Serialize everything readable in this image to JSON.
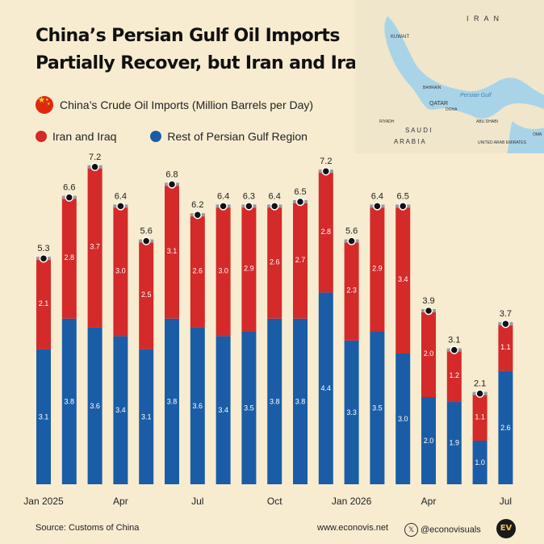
{
  "title_line1": "China’s Persian Gulf Oil Imports",
  "title_line2": "Partially Recover, but Iran and Iraq Lag",
  "subtitle": "China’s Crude Oil Imports (Million Barrels per Day)",
  "source": "Source: Customs of China",
  "website": "www.econovis.net",
  "handle": "@econovisuals",
  "logo_text": "EV",
  "map_labels": {
    "iran": "I R A N",
    "kuwait": "KUWAIT",
    "bahrain": "BAHRAIN",
    "qatar": "QATAR",
    "doha": "DOHA",
    "persian_gulf": "Persian Gulf",
    "riyadh": "RIYADH",
    "saudi": "S A U D I",
    "arabia": "A R A B I A",
    "abu_dhabi": "ABU DHABI",
    "uae": "UNITED ARAB EMIRATES",
    "oman": "OMA"
  },
  "colors": {
    "iran_iraq": "#d42a2a",
    "rest": "#1a5da6",
    "background": "#f7ecd0"
  },
  "chart_data": {
    "type": "bar",
    "stacked": true,
    "categories": [
      "Jan 2025",
      "Feb 2025",
      "Mar 2025",
      "Apr 2025",
      "May 2025",
      "Jun 2025",
      "Jul 2025",
      "Aug 2025",
      "Sep 2025",
      "Oct 2025",
      "Nov 2025",
      "Dec 2025",
      "Jan 2026",
      "Feb 2026",
      "Mar 2026",
      "Apr 2026",
      "May 2026",
      "Jun 2026",
      "Jul 2026"
    ],
    "x_tick_labels": [
      "Jan 2025",
      "",
      "",
      "Apr",
      "",
      "",
      "Jul",
      "",
      "",
      "Oct",
      "",
      "",
      "Jan 2026",
      "",
      "",
      "Apr",
      "",
      "",
      "Jul"
    ],
    "series": [
      {
        "name": "Rest of Persian Gulf Region",
        "values": [
          3.1,
          3.8,
          3.6,
          3.4,
          3.1,
          3.8,
          3.6,
          3.4,
          3.5,
          3.8,
          3.8,
          4.4,
          3.3,
          3.5,
          3.0,
          2.0,
          1.9,
          1.0,
          2.6
        ]
      },
      {
        "name": "Iran and Iraq",
        "values": [
          2.1,
          2.8,
          3.7,
          3.0,
          2.5,
          3.1,
          2.6,
          3.0,
          2.9,
          2.6,
          2.7,
          2.8,
          2.3,
          2.9,
          3.4,
          2.0,
          1.2,
          1.1,
          1.1
        ]
      }
    ],
    "totals": [
      5.3,
      6.6,
      7.2,
      6.4,
      5.6,
      6.8,
      6.2,
      6.4,
      6.3,
      6.4,
      6.5,
      7.2,
      5.6,
      6.4,
      6.5,
      3.9,
      3.1,
      2.1,
      3.7
    ],
    "ylim": [
      0,
      7.6
    ],
    "grid": false,
    "legend": "top-left"
  }
}
